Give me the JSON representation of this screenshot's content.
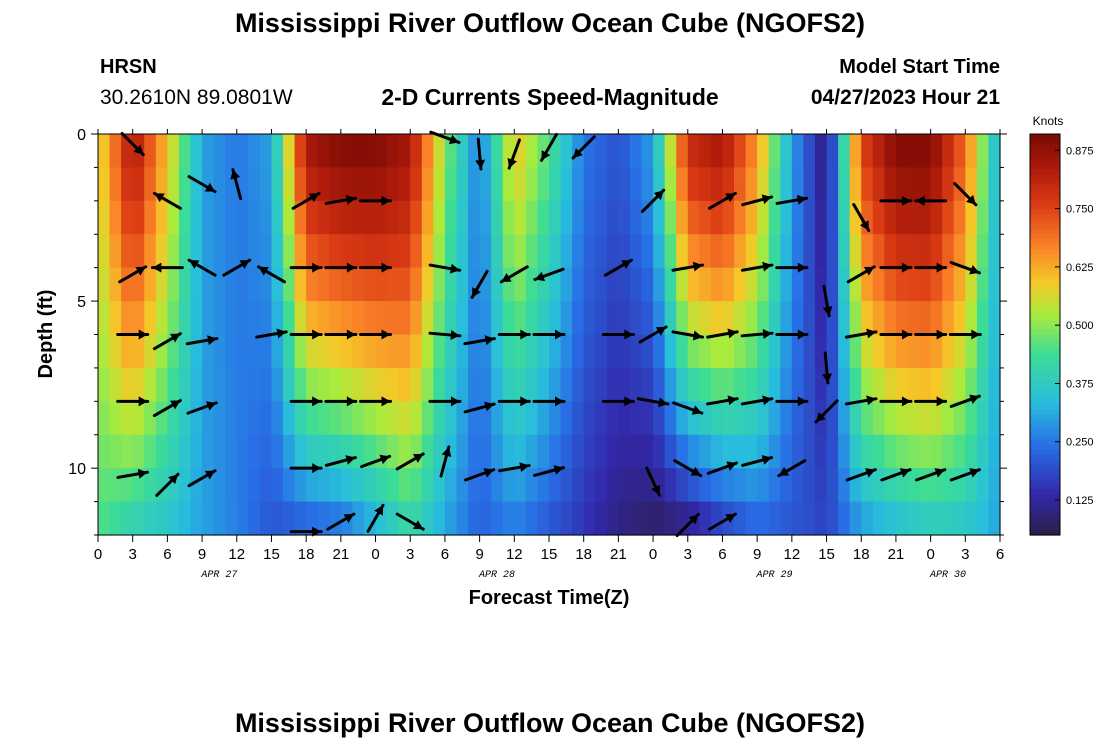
{
  "header": {
    "title": "Mississippi River Outflow Ocean Cube (NGOFS2)",
    "station": "HRSN",
    "coords": "30.2610N  89.0801W",
    "subtitle": "2-D Currents Speed-Magnitude",
    "model_label": "Model Start Time",
    "model_time": "04/27/2023 Hour 21"
  },
  "footer": {
    "title": "Mississippi River Outflow Ocean Cube (NGOFS2)"
  },
  "chart_data": {
    "type": "heatmap",
    "xlabel": "Forecast Time(Z)",
    "ylabel": "Depth (ft)",
    "colorbar_label": "Knots",
    "x_hours_range": [
      0,
      78
    ],
    "ylim": [
      0,
      12
    ],
    "y_ticks": [
      0,
      5,
      10
    ],
    "x_tick_labels": [
      "0",
      "3",
      "6",
      "9",
      "12",
      "15",
      "18",
      "21",
      "0",
      "3",
      "6",
      "9",
      "12",
      "15",
      "18",
      "21",
      "0",
      "3",
      "6",
      "9",
      "12",
      "15",
      "18",
      "21",
      "0",
      "3",
      "6"
    ],
    "date_labels": [
      {
        "label": "APR 27",
        "hour": 10.5
      },
      {
        "label": "APR 28",
        "hour": 34.5
      },
      {
        "label": "APR 29",
        "hour": 58.5
      },
      {
        "label": "APR 30",
        "hour": 73.5
      }
    ],
    "colorbar_ticks": [
      0.125,
      0.25,
      0.375,
      0.5,
      0.625,
      0.75,
      0.875
    ],
    "color_range": [
      0.05,
      0.91
    ],
    "depth_levels": [
      0.5,
      1.5,
      2.5,
      3.5,
      4.5,
      5.5,
      6.5,
      7.5,
      8.5,
      9.5,
      10.5,
      11.5
    ],
    "speed_profile_by_hour": [
      {
        "hour": 0,
        "surface": 0.55,
        "bottom": 0.45
      },
      {
        "hour": 3,
        "surface": 0.85,
        "bottom": 0.38
      },
      {
        "hour": 6,
        "surface": 0.6,
        "bottom": 0.35
      },
      {
        "hour": 9,
        "surface": 0.3,
        "bottom": 0.3
      },
      {
        "hour": 12,
        "surface": 0.25,
        "bottom": 0.26
      },
      {
        "hour": 15,
        "surface": 0.3,
        "bottom": 0.2
      },
      {
        "hour": 18,
        "surface": 0.85,
        "bottom": 0.2
      },
      {
        "hour": 21,
        "surface": 0.9,
        "bottom": 0.22
      },
      {
        "hour": 24,
        "surface": 0.9,
        "bottom": 0.3
      },
      {
        "hour": 27,
        "surface": 0.85,
        "bottom": 0.4
      },
      {
        "hour": 30,
        "surface": 0.5,
        "bottom": 0.3
      },
      {
        "hour": 33,
        "surface": 0.25,
        "bottom": 0.22
      },
      {
        "hour": 36,
        "surface": 0.6,
        "bottom": 0.25
      },
      {
        "hour": 39,
        "surface": 0.45,
        "bottom": 0.2
      },
      {
        "hour": 42,
        "surface": 0.25,
        "bottom": 0.15
      },
      {
        "hour": 45,
        "surface": 0.2,
        "bottom": 0.1
      },
      {
        "hour": 48,
        "surface": 0.3,
        "bottom": 0.07
      },
      {
        "hour": 51,
        "surface": 0.8,
        "bottom": 0.08
      },
      {
        "hour": 54,
        "surface": 0.85,
        "bottom": 0.15
      },
      {
        "hour": 57,
        "surface": 0.65,
        "bottom": 0.22
      },
      {
        "hour": 60,
        "surface": 0.3,
        "bottom": 0.2
      },
      {
        "hour": 63,
        "surface": 0.08,
        "bottom": 0.18
      },
      {
        "hour": 66,
        "surface": 0.75,
        "bottom": 0.28
      },
      {
        "hour": 69,
        "surface": 0.9,
        "bottom": 0.32
      },
      {
        "hour": 72,
        "surface": 0.9,
        "bottom": 0.36
      },
      {
        "hour": 75,
        "surface": 0.7,
        "bottom": 0.35
      },
      {
        "hour": 78,
        "surface": 0.3,
        "bottom": 0.3
      }
    ],
    "vectors": [
      {
        "hour": 3,
        "depth": 0.3,
        "dir": 135
      },
      {
        "hour": 6,
        "depth": 2,
        "dir": 300
      },
      {
        "hour": 9,
        "depth": 1.5,
        "dir": 120
      },
      {
        "hour": 12,
        "depth": 1.5,
        "dir": 345
      },
      {
        "hour": 18,
        "depth": 2,
        "dir": 60
      },
      {
        "hour": 21,
        "depth": 2,
        "dir": 80
      },
      {
        "hour": 24,
        "depth": 2,
        "dir": 90
      },
      {
        "hour": 30,
        "depth": 0.1,
        "dir": 110
      },
      {
        "hour": 33,
        "depth": 0.6,
        "dir": 175
      },
      {
        "hour": 36,
        "depth": 0.6,
        "dir": 200
      },
      {
        "hour": 39,
        "depth": 0.4,
        "dir": 210
      },
      {
        "hour": 42,
        "depth": 0.4,
        "dir": 225
      },
      {
        "hour": 48,
        "depth": 2,
        "dir": 45
      },
      {
        "hour": 54,
        "depth": 2,
        "dir": 60
      },
      {
        "hour": 57,
        "depth": 2,
        "dir": 75
      },
      {
        "hour": 60,
        "depth": 2,
        "dir": 80
      },
      {
        "hour": 66,
        "depth": 2.5,
        "dir": 150
      },
      {
        "hour": 69,
        "depth": 2,
        "dir": 90
      },
      {
        "hour": 72,
        "depth": 2,
        "dir": 270
      },
      {
        "hour": 75,
        "depth": 1.8,
        "dir": 135
      },
      {
        "hour": 3,
        "depth": 4.2,
        "dir": 60
      },
      {
        "hour": 6,
        "depth": 4,
        "dir": 270
      },
      {
        "hour": 9,
        "depth": 4,
        "dir": 300
      },
      {
        "hour": 12,
        "depth": 4,
        "dir": 60
      },
      {
        "hour": 15,
        "depth": 4.2,
        "dir": 300
      },
      {
        "hour": 18,
        "depth": 4,
        "dir": 90
      },
      {
        "hour": 21,
        "depth": 4,
        "dir": 90
      },
      {
        "hour": 24,
        "depth": 4,
        "dir": 90
      },
      {
        "hour": 30,
        "depth": 4,
        "dir": 100
      },
      {
        "hour": 33,
        "depth": 4.5,
        "dir": 210
      },
      {
        "hour": 36,
        "depth": 4.2,
        "dir": 240
      },
      {
        "hour": 39,
        "depth": 4.2,
        "dir": 250
      },
      {
        "hour": 45,
        "depth": 4,
        "dir": 60
      },
      {
        "hour": 51,
        "depth": 4,
        "dir": 80
      },
      {
        "hour": 57,
        "depth": 4,
        "dir": 80
      },
      {
        "hour": 60,
        "depth": 4,
        "dir": 90
      },
      {
        "hour": 63,
        "depth": 5,
        "dir": 170
      },
      {
        "hour": 66,
        "depth": 4.2,
        "dir": 60
      },
      {
        "hour": 69,
        "depth": 4,
        "dir": 90
      },
      {
        "hour": 72,
        "depth": 4,
        "dir": 90
      },
      {
        "hour": 75,
        "depth": 4,
        "dir": 110
      },
      {
        "hour": 3,
        "depth": 6,
        "dir": 90
      },
      {
        "hour": 6,
        "depth": 6.2,
        "dir": 60
      },
      {
        "hour": 9,
        "depth": 6.2,
        "dir": 80
      },
      {
        "hour": 15,
        "depth": 6,
        "dir": 80
      },
      {
        "hour": 18,
        "depth": 6,
        "dir": 90
      },
      {
        "hour": 21,
        "depth": 6,
        "dir": 90
      },
      {
        "hour": 24,
        "depth": 6,
        "dir": 90
      },
      {
        "hour": 30,
        "depth": 6,
        "dir": 95
      },
      {
        "hour": 33,
        "depth": 6.2,
        "dir": 80
      },
      {
        "hour": 36,
        "depth": 6,
        "dir": 90
      },
      {
        "hour": 39,
        "depth": 6,
        "dir": 90
      },
      {
        "hour": 45,
        "depth": 6,
        "dir": 90
      },
      {
        "hour": 48,
        "depth": 6,
        "dir": 60
      },
      {
        "hour": 51,
        "depth": 6,
        "dir": 100
      },
      {
        "hour": 54,
        "depth": 6,
        "dir": 80
      },
      {
        "hour": 57,
        "depth": 6,
        "dir": 85
      },
      {
        "hour": 60,
        "depth": 6,
        "dir": 90
      },
      {
        "hour": 63,
        "depth": 7,
        "dir": 175
      },
      {
        "hour": 66,
        "depth": 6,
        "dir": 80
      },
      {
        "hour": 69,
        "depth": 6,
        "dir": 90
      },
      {
        "hour": 72,
        "depth": 6,
        "dir": 90
      },
      {
        "hour": 75,
        "depth": 6,
        "dir": 90
      },
      {
        "hour": 3,
        "depth": 8,
        "dir": 90
      },
      {
        "hour": 6,
        "depth": 8.2,
        "dir": 60
      },
      {
        "hour": 9,
        "depth": 8.2,
        "dir": 70
      },
      {
        "hour": 18,
        "depth": 8,
        "dir": 90
      },
      {
        "hour": 21,
        "depth": 8,
        "dir": 90
      },
      {
        "hour": 24,
        "depth": 8,
        "dir": 90
      },
      {
        "hour": 30,
        "depth": 8,
        "dir": 90
      },
      {
        "hour": 33,
        "depth": 8.2,
        "dir": 75
      },
      {
        "hour": 36,
        "depth": 8,
        "dir": 90
      },
      {
        "hour": 39,
        "depth": 8,
        "dir": 90
      },
      {
        "hour": 45,
        "depth": 8,
        "dir": 90
      },
      {
        "hour": 48,
        "depth": 8,
        "dir": 100
      },
      {
        "hour": 51,
        "depth": 8.2,
        "dir": 110
      },
      {
        "hour": 54,
        "depth": 8,
        "dir": 80
      },
      {
        "hour": 57,
        "depth": 8,
        "dir": 80
      },
      {
        "hour": 60,
        "depth": 8,
        "dir": 90
      },
      {
        "hour": 63,
        "depth": 8.3,
        "dir": 225
      },
      {
        "hour": 66,
        "depth": 8,
        "dir": 80
      },
      {
        "hour": 69,
        "depth": 8,
        "dir": 90
      },
      {
        "hour": 72,
        "depth": 8,
        "dir": 90
      },
      {
        "hour": 75,
        "depth": 8,
        "dir": 70
      },
      {
        "hour": 3,
        "depth": 10.2,
        "dir": 80
      },
      {
        "hour": 6,
        "depth": 10.5,
        "dir": 45
      },
      {
        "hour": 9,
        "depth": 10.3,
        "dir": 60
      },
      {
        "hour": 18,
        "depth": 10,
        "dir": 90
      },
      {
        "hour": 21,
        "depth": 9.8,
        "dir": 75
      },
      {
        "hour": 24,
        "depth": 9.8,
        "dir": 70
      },
      {
        "hour": 27,
        "depth": 9.8,
        "dir": 60
      },
      {
        "hour": 30,
        "depth": 9.8,
        "dir": 15
      },
      {
        "hour": 33,
        "depth": 10.2,
        "dir": 70
      },
      {
        "hour": 36,
        "depth": 10,
        "dir": 80
      },
      {
        "hour": 39,
        "depth": 10.1,
        "dir": 75
      },
      {
        "hour": 48,
        "depth": 10.4,
        "dir": 155
      },
      {
        "hour": 51,
        "depth": 10,
        "dir": 120
      },
      {
        "hour": 54,
        "depth": 10,
        "dir": 70
      },
      {
        "hour": 57,
        "depth": 9.8,
        "dir": 75
      },
      {
        "hour": 60,
        "depth": 10,
        "dir": 240
      },
      {
        "hour": 66,
        "depth": 10.2,
        "dir": 70
      },
      {
        "hour": 69,
        "depth": 10.2,
        "dir": 70
      },
      {
        "hour": 72,
        "depth": 10.2,
        "dir": 70
      },
      {
        "hour": 75,
        "depth": 10.2,
        "dir": 70
      },
      {
        "hour": 18,
        "depth": 11.9,
        "dir": 90
      },
      {
        "hour": 21,
        "depth": 11.6,
        "dir": 60
      },
      {
        "hour": 24,
        "depth": 11.5,
        "dir": 30
      },
      {
        "hour": 27,
        "depth": 11.6,
        "dir": 120
      },
      {
        "hour": 51,
        "depth": 11.7,
        "dir": 45
      },
      {
        "hour": 54,
        "depth": 11.6,
        "dir": 60
      }
    ]
  }
}
